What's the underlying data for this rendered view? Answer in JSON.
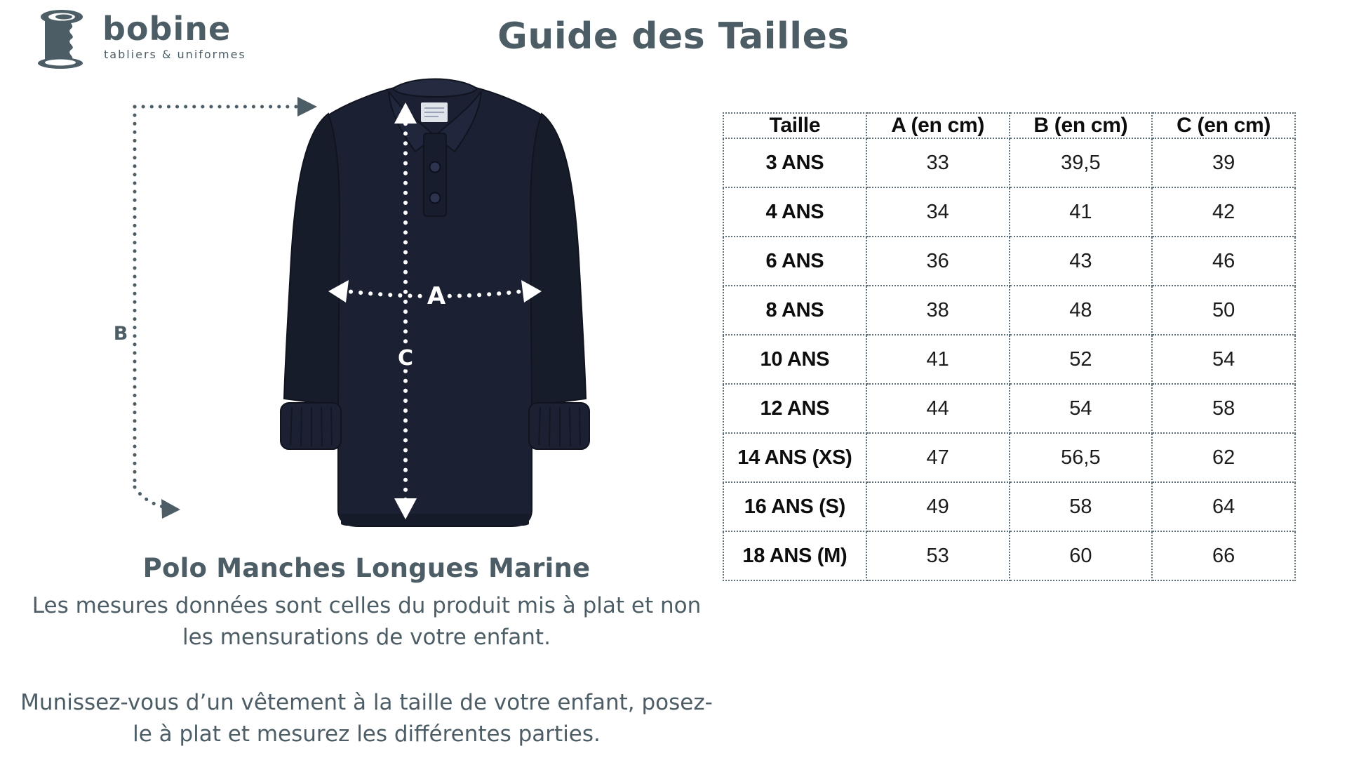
{
  "brand": {
    "name": "bobine",
    "tagline": "tabliers & uniformes"
  },
  "page_title": "Guide des Tailles",
  "product": {
    "name": "Polo Manches Longues Marine",
    "note_flat": "Les mesures données sont celles du produit mis à plat et non les mensurations de votre enfant.",
    "note_measure": "Munissez-vous d’un vêtement à la taille de votre enfant, posez-le à plat et mesurez les différentes parties."
  },
  "diagram": {
    "a_label": "A",
    "b_label": "B",
    "c_label": "C"
  },
  "size_table": {
    "columns": [
      "Taille",
      "A (en cm)",
      "B (en cm)",
      "C (en cm)"
    ],
    "rows": [
      [
        "3 ANS",
        "33",
        "39,5",
        "39"
      ],
      [
        "4 ANS",
        "34",
        "41",
        "42"
      ],
      [
        "6 ANS",
        "36",
        "43",
        "46"
      ],
      [
        "8 ANS",
        "38",
        "48",
        "50"
      ],
      [
        "10 ANS",
        "41",
        "52",
        "54"
      ],
      [
        "12 ANS",
        "44",
        "54",
        "58"
      ],
      [
        "14 ANS (XS)",
        "47",
        "56,5",
        "62"
      ],
      [
        "16 ANS (S)",
        "49",
        "58",
        "64"
      ],
      [
        "18 ANS (M)",
        "53",
        "60",
        "66"
      ]
    ]
  },
  "colors": {
    "accent_slate": "#4d5d66",
    "polo_navy": "#1b2133",
    "table_border": "#5e6e78"
  }
}
